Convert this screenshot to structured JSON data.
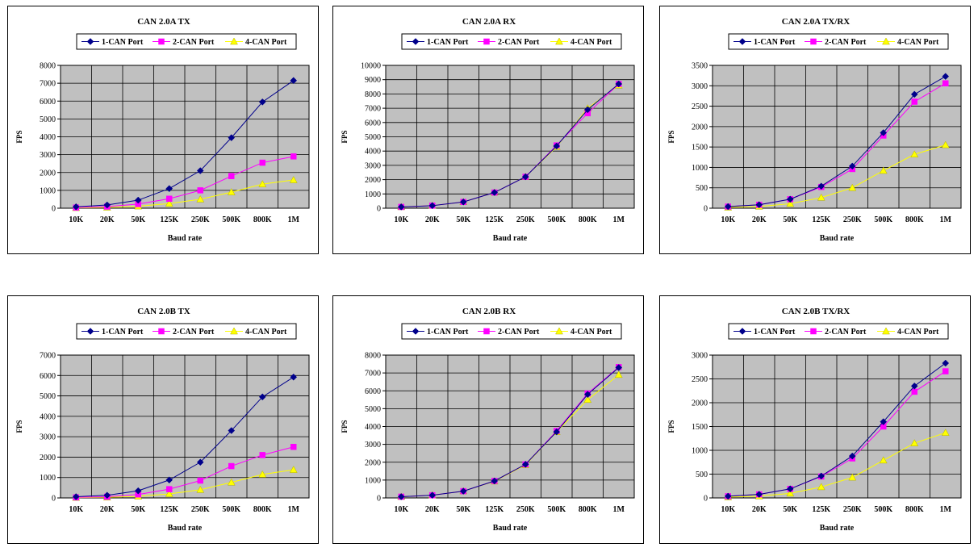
{
  "chart_data": [
    {
      "type": "line",
      "title": "CAN 2.0A TX",
      "xlabel": "Baud rate",
      "ylabel": "FPS",
      "categories": [
        "10K",
        "20K",
        "50K",
        "125K",
        "250K",
        "500K",
        "800K",
        "1M"
      ],
      "ylim": [
        0,
        8000
      ],
      "yticks": [
        0,
        1000,
        2000,
        3000,
        4000,
        5000,
        6000,
        7000,
        8000
      ],
      "grid": true,
      "legend_position": "top",
      "series": [
        {
          "name": "1-CAN Port",
          "values": [
            80,
            180,
            450,
            1100,
            2100,
            3950,
            5950,
            7150
          ]
        },
        {
          "name": "2-CAN Port",
          "values": [
            40,
            90,
            230,
            530,
            1000,
            1800,
            2550,
            2900
          ]
        },
        {
          "name": "4-CAN Port",
          "values": [
            20,
            45,
            110,
            260,
            500,
            900,
            1350,
            1580
          ]
        }
      ]
    },
    {
      "type": "line",
      "title": "CAN 2.0A RX",
      "xlabel": "Baud rate",
      "ylabel": "FPS",
      "categories": [
        "10K",
        "20K",
        "50K",
        "125K",
        "250K",
        "500K",
        "800K",
        "1M"
      ],
      "ylim": [
        0,
        10000
      ],
      "yticks": [
        0,
        1000,
        2000,
        3000,
        4000,
        5000,
        6000,
        7000,
        8000,
        9000,
        10000
      ],
      "grid": true,
      "legend_position": "top",
      "series": [
        {
          "name": "1-CAN Port",
          "values": [
            90,
            180,
            440,
            1100,
            2200,
            4350,
            6900,
            8700
          ]
        },
        {
          "name": "2-CAN Port",
          "values": [
            90,
            180,
            440,
            1100,
            2200,
            4400,
            6650,
            8700
          ]
        },
        {
          "name": "4-CAN Port",
          "values": [
            90,
            180,
            440,
            1100,
            2200,
            4300,
            7000,
            8600
          ]
        }
      ]
    },
    {
      "type": "line",
      "title": "CAN 2.0A TX/RX",
      "xlabel": "Baud rate",
      "ylabel": "FPS",
      "categories": [
        "10K",
        "20K",
        "50K",
        "125K",
        "250K",
        "500K",
        "800K",
        "1M"
      ],
      "ylim": [
        0,
        3500
      ],
      "yticks": [
        0,
        500,
        1000,
        1500,
        2000,
        2500,
        3000,
        3500
      ],
      "grid": true,
      "legend_position": "top",
      "series": [
        {
          "name": "1-CAN Port",
          "values": [
            40,
            85,
            220,
            540,
            1030,
            1850,
            2790,
            3230
          ]
        },
        {
          "name": "2-CAN Port",
          "values": [
            40,
            85,
            220,
            520,
            960,
            1780,
            2610,
            3060
          ]
        },
        {
          "name": "4-CAN Port",
          "values": [
            20,
            42,
            110,
            260,
            500,
            920,
            1320,
            1550
          ]
        }
      ]
    },
    {
      "type": "line",
      "title": "CAN 2.0B TX",
      "xlabel": "Baud rate",
      "ylabel": "FPS",
      "categories": [
        "10K",
        "20K",
        "50K",
        "125K",
        "250K",
        "500K",
        "800K",
        "1M"
      ],
      "ylim": [
        0,
        7000
      ],
      "yticks": [
        0,
        1000,
        2000,
        3000,
        4000,
        5000,
        6000,
        7000
      ],
      "grid": true,
      "legend_position": "top",
      "series": [
        {
          "name": "1-CAN Port",
          "values": [
            60,
            130,
            350,
            880,
            1750,
            3300,
            4950,
            5920
          ]
        },
        {
          "name": "2-CAN Port",
          "values": [
            30,
            60,
            170,
            430,
            850,
            1560,
            2100,
            2500
          ]
        },
        {
          "name": "4-CAN Port",
          "values": [
            15,
            30,
            80,
            200,
            400,
            760,
            1150,
            1380
          ]
        }
      ]
    },
    {
      "type": "line",
      "title": "CAN 2.0B RX",
      "xlabel": "Baud rate",
      "ylabel": "FPS",
      "categories": [
        "10K",
        "20K",
        "50K",
        "125K",
        "250K",
        "500K",
        "800K",
        "1M"
      ],
      "ylim": [
        0,
        8000
      ],
      "yticks": [
        0,
        1000,
        2000,
        3000,
        4000,
        5000,
        6000,
        7000,
        8000
      ],
      "grid": true,
      "legend_position": "top",
      "series": [
        {
          "name": "1-CAN Port",
          "values": [
            70,
            150,
            380,
            950,
            1880,
            3700,
            5800,
            7300
          ]
        },
        {
          "name": "2-CAN Port",
          "values": [
            70,
            150,
            380,
            950,
            1880,
            3750,
            5850,
            7330
          ]
        },
        {
          "name": "4-CAN Port",
          "values": [
            70,
            150,
            380,
            930,
            1850,
            3700,
            5500,
            6900
          ]
        }
      ]
    },
    {
      "type": "line",
      "title": "CAN 2.0B TX/RX",
      "xlabel": "Baud rate",
      "ylabel": "FPS",
      "categories": [
        "10K",
        "20K",
        "50K",
        "125K",
        "250K",
        "500K",
        "800K",
        "1M"
      ],
      "ylim": [
        0,
        3000
      ],
      "yticks": [
        0,
        500,
        1000,
        1500,
        2000,
        2500,
        3000
      ],
      "grid": true,
      "legend_position": "top",
      "series": [
        {
          "name": "1-CAN Port",
          "values": [
            35,
            75,
            190,
            460,
            880,
            1600,
            2350,
            2830
          ]
        },
        {
          "name": "2-CAN Port",
          "values": [
            35,
            75,
            190,
            450,
            830,
            1500,
            2230,
            2660
          ]
        },
        {
          "name": "4-CAN Port",
          "values": [
            18,
            38,
            95,
            230,
            430,
            790,
            1150,
            1370
          ]
        }
      ]
    }
  ],
  "colors": {
    "plot_background": "#c0c0c0",
    "grid": "#000000",
    "series": [
      "#00008b",
      "#ff00ff",
      "#ffff00"
    ],
    "marker_outline": [
      "#00008b",
      "#ff00ff",
      "#b0b000"
    ]
  }
}
